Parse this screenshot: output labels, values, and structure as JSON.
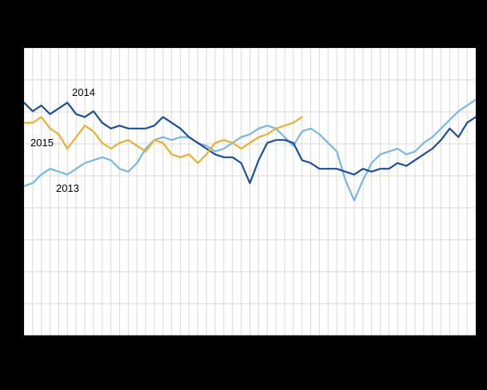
{
  "page": {
    "background_color": "#000000",
    "plot_background_color": "#ffffff"
  },
  "chart_data": {
    "type": "line",
    "x_unit": "week",
    "x_range": [
      1,
      53
    ],
    "ylim": [
      0,
      100
    ],
    "grid": {
      "vertical_count": 53,
      "horizontal_count": 10,
      "color": "#d9d9d9",
      "axis_color": "#8c8c8c"
    },
    "legend_position": "inline-labels",
    "series": [
      {
        "name": "2013",
        "color": "#75b8e6",
        "values": [
          52,
          53,
          56,
          58,
          57,
          56,
          58,
          60,
          61,
          62,
          61,
          58,
          57,
          60,
          65,
          68,
          69,
          68,
          69,
          69,
          67,
          66,
          64,
          65,
          67,
          69,
          70,
          72,
          73,
          72,
          69,
          66,
          71,
          72,
          70,
          67,
          64,
          54,
          47,
          54,
          60,
          63,
          64,
          65,
          63,
          64,
          67,
          69,
          72,
          75,
          78,
          80,
          82
        ]
      },
      {
        "name": "2014",
        "color": "#1b4f9c",
        "values": [
          81,
          78,
          80,
          77,
          79,
          81,
          77,
          76,
          78,
          74,
          72,
          73,
          72,
          72,
          72,
          73,
          76,
          74,
          72,
          69,
          67,
          65,
          63,
          62,
          62,
          60,
          53,
          61,
          67,
          68,
          68,
          67,
          61,
          60,
          58,
          58,
          58,
          57,
          56,
          58,
          57,
          58,
          58,
          60,
          59,
          61,
          63,
          65,
          68,
          72,
          69,
          74,
          76
        ]
      },
      {
        "name": "2015",
        "color": "#e9b02e",
        "values": [
          74,
          74,
          76,
          72,
          70,
          65,
          69,
          73,
          71,
          67,
          65,
          67,
          68,
          66,
          64,
          68,
          67,
          63,
          62,
          63,
          60,
          63,
          67,
          68,
          67,
          65,
          67,
          69,
          70,
          72,
          73,
          74,
          76
        ]
      }
    ]
  },
  "annotations": {
    "label_2014": "2014",
    "label_2015": "2015",
    "label_2013": "2013"
  }
}
